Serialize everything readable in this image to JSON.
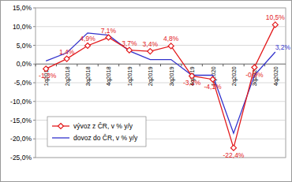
{
  "chart_data": {
    "type": "line",
    "categories": [
      "1q2018",
      "2q2018",
      "3q2018",
      "4q2018",
      "1q2019",
      "2q2019",
      "3q2019",
      "4q2019",
      "1q2020",
      "2q2020",
      "3q2020",
      "4q2020"
    ],
    "series": [
      {
        "name": "vývoz z ČR, v % y/y",
        "color": "#e31a1c",
        "marker": "diamond",
        "data_labels": true,
        "values": [
          -1.3,
          1.4,
          4.9,
          7.1,
          3.7,
          3.4,
          4.8,
          -3.2,
          -4.1,
          -22.4,
          -0.9,
          10.5
        ],
        "value_labels": [
          "-1,3%",
          "1,4%",
          "4,9%",
          "7,1%",
          "3,7%",
          "3,4%",
          "4,8%",
          "-3,2%",
          "-4,1%",
          "-22,4%",
          "-0,9%",
          "10,5%"
        ]
      },
      {
        "name": "dovoz do ČR, v % y/y",
        "color": "#3333cc",
        "marker": "none",
        "data_labels": true,
        "values": [
          0.8,
          3.0,
          8.3,
          7.7,
          3.5,
          1.2,
          1.2,
          -3.0,
          -3.0,
          -18.5,
          -3.0,
          3.2
        ],
        "value_labels": [
          null,
          null,
          null,
          null,
          null,
          null,
          null,
          null,
          null,
          null,
          null,
          "3,2%"
        ]
      }
    ],
    "ylim": [
      -25,
      15
    ],
    "yticks": [
      {
        "value": -25,
        "label": "-25,0%"
      },
      {
        "value": -20,
        "label": "-20,0%"
      },
      {
        "value": -15,
        "label": "-15,0%"
      },
      {
        "value": -10,
        "label": "-10,0%"
      },
      {
        "value": -5,
        "label": "-5,0%"
      },
      {
        "value": 0,
        "label": "0,0%"
      },
      {
        "value": 5,
        "label": "5,0%"
      },
      {
        "value": 10,
        "label": "10,0%"
      },
      {
        "value": 15,
        "label": "15,0%"
      }
    ],
    "grid": true,
    "legend": "lower-left"
  }
}
